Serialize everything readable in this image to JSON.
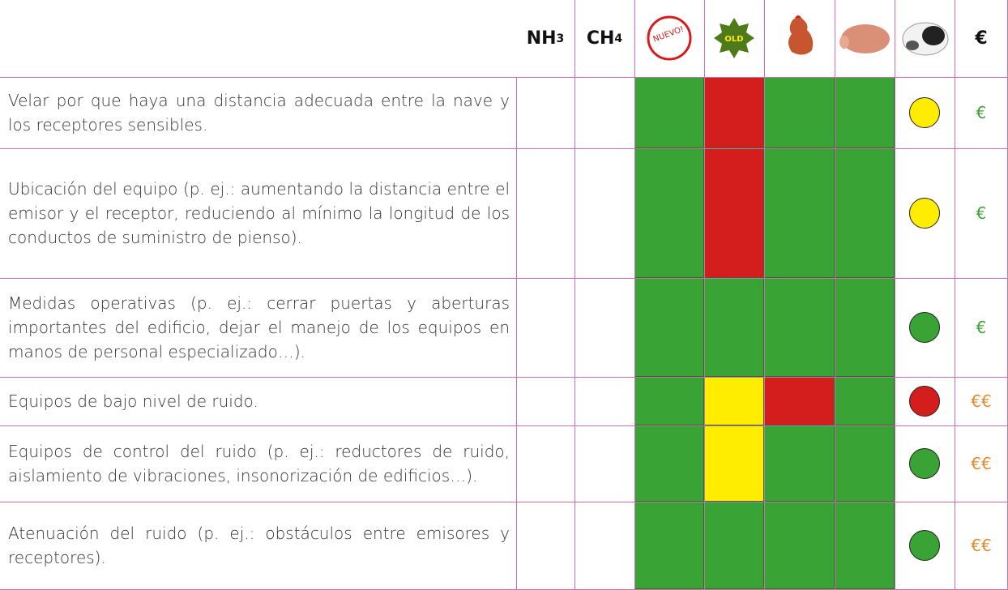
{
  "header": {
    "nh3": {
      "base": "NH",
      "sub": "3"
    },
    "ch4": {
      "base": "CH",
      "sub": "4"
    },
    "nuevo": "NUEVO!",
    "old": "OLD",
    "euro": "€"
  },
  "rows": [
    {
      "text": "Velar por que haya una distancia adecuada entre la nave y los receptores sensibles.",
      "cells": [
        "#3aa335",
        "#d41e1e",
        "#3aa335",
        "#3aa335"
      ],
      "circle": "#ffed00",
      "cost": "€",
      "cost_color": "#3aa335"
    },
    {
      "text": "Ubicación del equipo (p. ej.: aumentando la distancia entre el emisor y el receptor, reduciendo al mínimo la longitud de los conductos de suministro de pienso).",
      "cells": [
        "#3aa335",
        "#d41e1e",
        "#3aa335",
        "#3aa335"
      ],
      "circle": "#ffed00",
      "cost": "€",
      "cost_color": "#3aa335"
    },
    {
      "text": "Medidas operativas (p. ej.: cerrar puertas y aberturas importantes del edificio, dejar el manejo de los equipos en manos de personal especializado…).",
      "cells": [
        "#3aa335",
        "#3aa335",
        "#3aa335",
        "#3aa335"
      ],
      "circle": "#3aa335",
      "cost": "€",
      "cost_color": "#3aa335"
    },
    {
      "text": "Equipos de bajo nivel de ruido.",
      "cells": [
        "#3aa335",
        "#ffed00",
        "#d41e1e",
        "#3aa335"
      ],
      "circle": "#d41e1e",
      "cost": "€€",
      "cost_color": "#e08a2c"
    },
    {
      "text": "Equipos de control del ruido (p. ej.: reductores de ruido, aislamiento de vibraciones, insonorización de edificios…).",
      "cells": [
        "#3aa335",
        "#ffed00",
        "#3aa335",
        "#3aa335"
      ],
      "circle": "#3aa335",
      "cost": "€€",
      "cost_color": "#e08a2c"
    },
    {
      "text": "Atenuación del ruido (p. ej.: obstáculos entre emisores y receptores).",
      "cells": [
        "#3aa335",
        "#3aa335",
        "#3aa335",
        "#3aa335"
      ],
      "circle": "#3aa335",
      "cost": "€€",
      "cost_color": "#e08a2c"
    }
  ]
}
